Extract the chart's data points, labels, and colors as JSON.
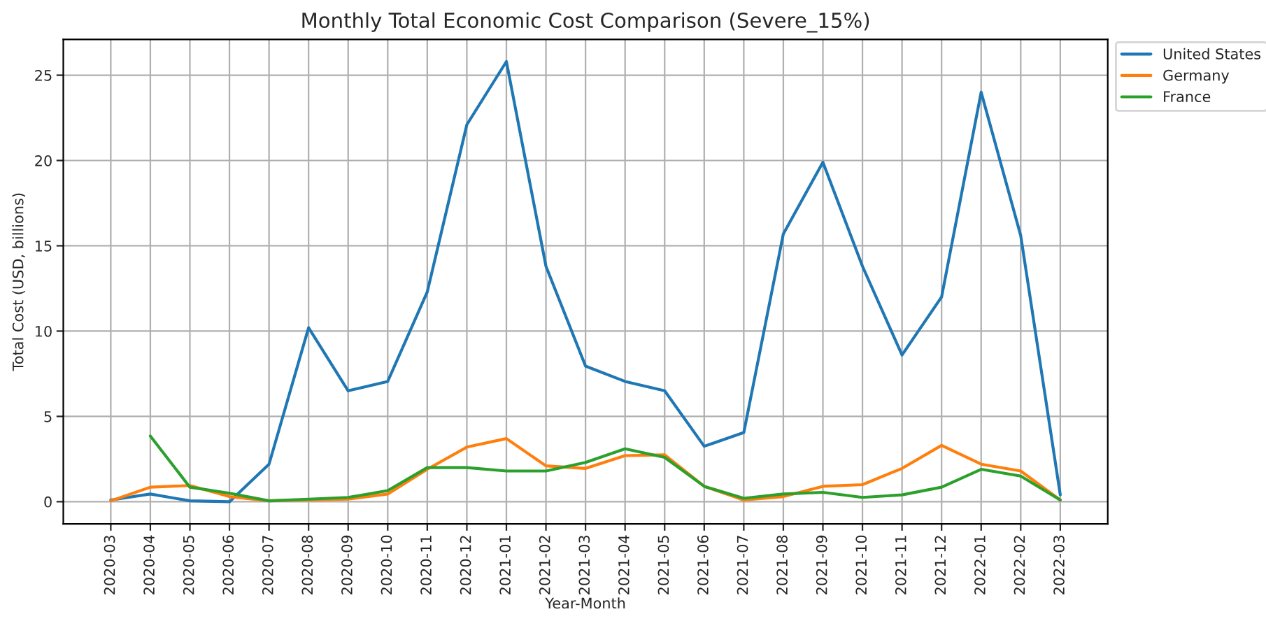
{
  "chart_data": {
    "type": "line",
    "title": "Monthly Total Economic Cost Comparison (Severe_15%)",
    "xlabel": "Year-Month",
    "ylabel": "Total Cost (USD, billions)",
    "categories": [
      "2020-03",
      "2020-04",
      "2020-05",
      "2020-06",
      "2020-07",
      "2020-08",
      "2020-09",
      "2020-10",
      "2020-11",
      "2020-12",
      "2021-01",
      "2021-02",
      "2021-03",
      "2021-04",
      "2021-05",
      "2021-06",
      "2021-07",
      "2021-08",
      "2021-09",
      "2021-10",
      "2021-11",
      "2021-12",
      "2022-01",
      "2022-02",
      "2022-03"
    ],
    "series": [
      {
        "name": "United States",
        "color": "#1f77b4",
        "values": [
          0.1,
          0.45,
          0.05,
          0.0,
          2.2,
          10.2,
          6.5,
          7.05,
          12.3,
          22.1,
          25.8,
          13.8,
          7.95,
          7.05,
          6.5,
          3.25,
          4.05,
          15.7,
          19.9,
          13.8,
          8.6,
          12.0,
          24.0,
          15.6,
          0.4
        ]
      },
      {
        "name": "Germany",
        "color": "#ff7f0e",
        "values": [
          0.05,
          0.85,
          0.95,
          0.3,
          0.05,
          0.1,
          0.15,
          0.45,
          1.9,
          3.2,
          3.7,
          2.1,
          1.95,
          2.7,
          2.75,
          0.9,
          0.1,
          0.3,
          0.9,
          1.0,
          1.95,
          3.3,
          2.2,
          1.8,
          0.1
        ]
      },
      {
        "name": "France",
        "color": "#2ca02c",
        "values": [
          null,
          3.85,
          0.85,
          0.5,
          0.05,
          0.15,
          0.25,
          0.65,
          2.0,
          2.0,
          1.8,
          1.8,
          2.3,
          3.1,
          2.6,
          0.9,
          0.2,
          0.45,
          0.55,
          0.25,
          0.4,
          0.85,
          1.9,
          1.5,
          0.1
        ]
      }
    ],
    "ylim": [
      -1.3,
      27.1
    ],
    "yticks": [
      0,
      5,
      10,
      15,
      20,
      25
    ],
    "grid": true,
    "legend": "top right",
    "marker": "none",
    "line_style": "solid"
  }
}
